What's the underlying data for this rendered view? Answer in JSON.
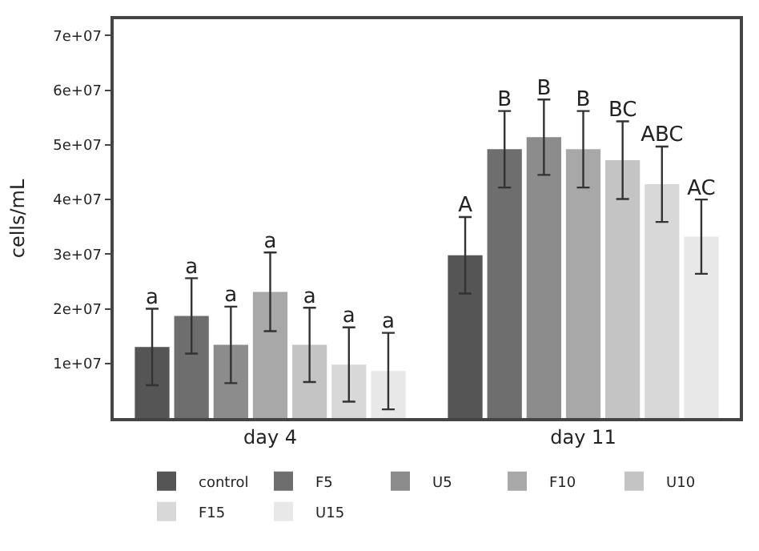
{
  "chart_data": {
    "type": "bar",
    "ylabel": "cells/mL",
    "categories": [
      "day 4",
      "day 11"
    ],
    "series": [
      {
        "name": "control",
        "color": "#555555",
        "values": [
          13000000,
          29800000
        ],
        "errors": [
          7000000,
          7000000
        ],
        "value_labels": [
          "a",
          "A"
        ]
      },
      {
        "name": "F5",
        "color": "#6e6e6e",
        "values": [
          18700000,
          49200000
        ],
        "errors": [
          6900000,
          7000000
        ],
        "value_labels": [
          "a",
          "B"
        ]
      },
      {
        "name": "U5",
        "color": "#8c8c8c",
        "values": [
          13400000,
          51400000
        ],
        "errors": [
          7000000,
          6900000
        ],
        "value_labels": [
          "a",
          "B"
        ]
      },
      {
        "name": "F10",
        "color": "#a8a8a8",
        "values": [
          23100000,
          49200000
        ],
        "errors": [
          7200000,
          7000000
        ],
        "value_labels": [
          "a",
          "B"
        ]
      },
      {
        "name": "U10",
        "color": "#c4c4c4",
        "values": [
          13400000,
          47200000
        ],
        "errors": [
          6800000,
          7100000
        ],
        "value_labels": [
          "a",
          "BC"
        ]
      },
      {
        "name": "F15",
        "color": "#d8d8d8",
        "values": [
          9800000,
          42800000
        ],
        "errors": [
          6800000,
          6900000
        ],
        "value_labels": [
          "a",
          "ABC"
        ]
      },
      {
        "name": "U15",
        "color": "#e8e8e8",
        "values": [
          8600000,
          33200000
        ],
        "errors": [
          7000000,
          6800000
        ],
        "value_labels": [
          "a",
          "AC"
        ]
      }
    ],
    "ylim": [
      0,
      73000000
    ],
    "yticks": [
      {
        "value": 10000000,
        "label": "1e+07"
      },
      {
        "value": 20000000,
        "label": "2e+07"
      },
      {
        "value": 30000000,
        "label": "3e+07"
      },
      {
        "value": 40000000,
        "label": "4e+07"
      },
      {
        "value": 50000000,
        "label": "5e+07"
      },
      {
        "value": 60000000,
        "label": "6e+07"
      },
      {
        "value": 70000000,
        "label": "7e+07"
      }
    ],
    "legend": "bottom"
  }
}
